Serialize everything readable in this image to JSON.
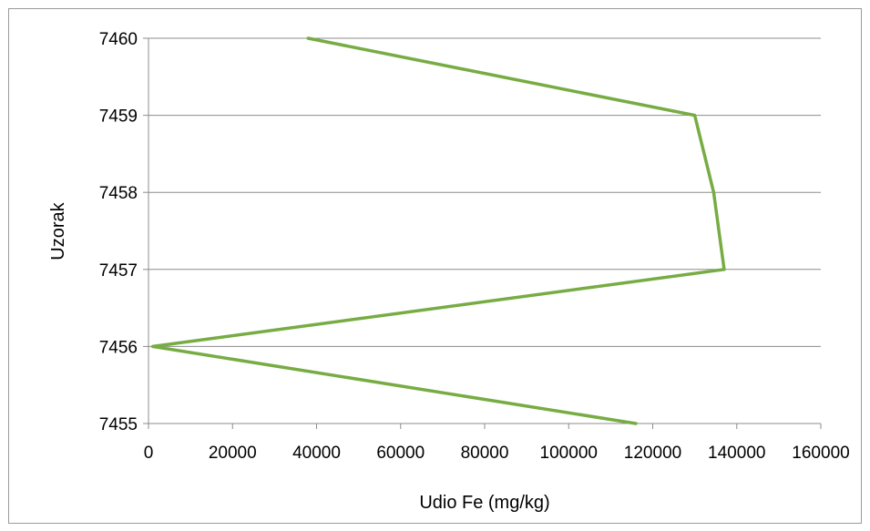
{
  "chart_data": {
    "type": "line",
    "title": "",
    "xlabel": "Udio Fe (mg/kg)",
    "ylabel": "Uzorak",
    "xlim": [
      0,
      160000
    ],
    "ylim": [
      7455,
      7460
    ],
    "x_ticks": [
      "0",
      "20000",
      "40000",
      "60000",
      "80000",
      "100000",
      "120000",
      "140000",
      "160000"
    ],
    "y_ticks": [
      "7455",
      "7456",
      "7457",
      "7458",
      "7459",
      "7460"
    ],
    "grid": true,
    "series": [
      {
        "color": "#77AC44",
        "points": [
          {
            "x": 116000,
            "y": 7455
          },
          {
            "x": 1000,
            "y": 7456
          },
          {
            "x": 137000,
            "y": 7457
          },
          {
            "x": 134500,
            "y": 7458
          },
          {
            "x": 130000,
            "y": 7459
          },
          {
            "x": 38000,
            "y": 7460
          }
        ]
      }
    ]
  }
}
